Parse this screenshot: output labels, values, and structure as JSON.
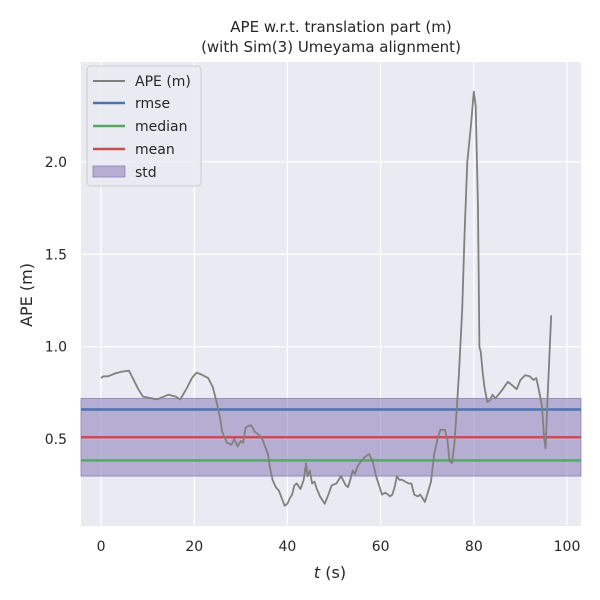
{
  "chart_data": {
    "type": "line",
    "title": "APE w.r.t. translation part (m)",
    "subtitle": "(with Sim(3) Umeyama alignment)",
    "xlabel_var": "t",
    "xlabel_unit": " (s)",
    "ylabel": "APE (m)",
    "xlim": [
      -4.3,
      103
    ],
    "ylim": [
      0.03,
      2.54
    ],
    "xticks": [
      0,
      20,
      40,
      60,
      80,
      100
    ],
    "yticks": [
      0.5,
      1.0,
      1.5,
      2.0
    ],
    "ytick_labels": [
      "0.5",
      "1.0",
      "1.5",
      "2.0"
    ],
    "grid": true,
    "legend_position": "top-left",
    "colors": {
      "background": "#eaeaf2",
      "grid": "#ffffff",
      "ape": "#808080",
      "rmse": "#4c72b0",
      "median": "#55a868",
      "mean": "#c44e52",
      "std_fill": "#8172b2"
    },
    "stats": {
      "rmse": 0.66,
      "median": 0.385,
      "mean": 0.51,
      "std_low": 0.3,
      "std_high": 0.72
    },
    "legend": [
      "APE (m)",
      "rmse",
      "median",
      "mean",
      "std"
    ],
    "series": [
      {
        "name": "APE (m)",
        "points": [
          [
            0,
            0.83
          ],
          [
            0.5,
            0.84
          ],
          [
            1.5,
            0.84
          ],
          [
            3,
            0.855
          ],
          [
            4.5,
            0.865
          ],
          [
            6,
            0.87
          ],
          [
            7,
            0.82
          ],
          [
            8,
            0.77
          ],
          [
            9,
            0.73
          ],
          [
            10,
            0.725
          ],
          [
            12,
            0.715
          ],
          [
            13.5,
            0.73
          ],
          [
            14.5,
            0.74
          ],
          [
            16,
            0.73
          ],
          [
            17,
            0.715
          ],
          [
            18.5,
            0.78
          ],
          [
            19.5,
            0.83
          ],
          [
            20.5,
            0.86
          ],
          [
            21.5,
            0.85
          ],
          [
            23,
            0.83
          ],
          [
            24,
            0.78
          ],
          [
            24.8,
            0.7
          ],
          [
            25.5,
            0.62
          ],
          [
            26,
            0.54
          ],
          [
            26.5,
            0.51
          ],
          [
            27,
            0.48
          ],
          [
            28,
            0.47
          ],
          [
            28.6,
            0.5
          ],
          [
            29.3,
            0.46
          ],
          [
            30,
            0.49
          ],
          [
            30.5,
            0.48
          ],
          [
            31,
            0.56
          ],
          [
            31.5,
            0.57
          ],
          [
            32.2,
            0.575
          ],
          [
            33,
            0.54
          ],
          [
            34,
            0.52
          ],
          [
            34.6,
            0.5
          ],
          [
            35.2,
            0.46
          ],
          [
            35.8,
            0.42
          ],
          [
            36.3,
            0.34
          ],
          [
            36.8,
            0.28
          ],
          [
            37.5,
            0.24
          ],
          [
            38.2,
            0.22
          ],
          [
            38.8,
            0.18
          ],
          [
            39.4,
            0.14
          ],
          [
            40,
            0.15
          ],
          [
            40.5,
            0.18
          ],
          [
            41,
            0.2
          ],
          [
            41.5,
            0.25
          ],
          [
            42,
            0.26
          ],
          [
            42.8,
            0.23
          ],
          [
            43.5,
            0.28
          ],
          [
            44,
            0.37
          ],
          [
            44.3,
            0.3
          ],
          [
            44.8,
            0.33
          ],
          [
            45.3,
            0.26
          ],
          [
            45.8,
            0.27
          ],
          [
            46.3,
            0.23
          ],
          [
            47,
            0.19
          ],
          [
            48,
            0.15
          ],
          [
            48.8,
            0.2
          ],
          [
            49.5,
            0.25
          ],
          [
            50.5,
            0.26
          ],
          [
            51.5,
            0.3
          ],
          [
            52.5,
            0.25
          ],
          [
            53,
            0.24
          ],
          [
            53.5,
            0.28
          ],
          [
            54,
            0.33
          ],
          [
            54.5,
            0.31
          ],
          [
            55,
            0.35
          ],
          [
            55.5,
            0.37
          ],
          [
            56.5,
            0.4
          ],
          [
            57.5,
            0.42
          ],
          [
            58.3,
            0.38
          ],
          [
            59,
            0.3
          ],
          [
            59.8,
            0.24
          ],
          [
            60.3,
            0.2
          ],
          [
            61,
            0.21
          ],
          [
            61.6,
            0.2
          ],
          [
            62,
            0.19
          ],
          [
            62.5,
            0.2
          ],
          [
            63,
            0.24
          ],
          [
            63.5,
            0.3
          ],
          [
            64,
            0.28
          ],
          [
            64.6,
            0.28
          ],
          [
            65.3,
            0.27
          ],
          [
            66,
            0.26
          ],
          [
            66.6,
            0.26
          ],
          [
            67.2,
            0.2
          ],
          [
            68,
            0.19
          ],
          [
            68.5,
            0.2
          ],
          [
            69,
            0.18
          ],
          [
            69.5,
            0.16
          ],
          [
            70,
            0.2
          ],
          [
            70.8,
            0.27
          ],
          [
            71.5,
            0.42
          ],
          [
            72.2,
            0.5
          ],
          [
            72.8,
            0.55
          ],
          [
            73.8,
            0.55
          ],
          [
            74.3,
            0.5
          ],
          [
            74.8,
            0.38
          ],
          [
            75.3,
            0.37
          ],
          [
            75.8,
            0.47
          ],
          [
            76.3,
            0.65
          ],
          [
            76.8,
            0.85
          ],
          [
            77.5,
            1.2
          ],
          [
            78,
            1.6
          ],
          [
            78.6,
            2.0
          ],
          [
            79.4,
            2.2
          ],
          [
            80,
            2.38
          ],
          [
            80.4,
            2.3
          ],
          [
            80.9,
            1.75
          ],
          [
            81.2,
            1.0
          ],
          [
            81.5,
            0.97
          ],
          [
            81.9,
            0.86
          ],
          [
            82.3,
            0.78
          ],
          [
            82.9,
            0.7
          ],
          [
            83.5,
            0.71
          ],
          [
            84,
            0.74
          ],
          [
            84.6,
            0.72
          ],
          [
            85.3,
            0.74
          ],
          [
            86.2,
            0.77
          ],
          [
            87.3,
            0.81
          ],
          [
            88.3,
            0.79
          ],
          [
            89.2,
            0.77
          ],
          [
            90,
            0.82
          ],
          [
            91,
            0.845
          ],
          [
            92,
            0.84
          ],
          [
            92.8,
            0.82
          ],
          [
            93.4,
            0.83
          ],
          [
            94,
            0.76
          ],
          [
            94.6,
            0.68
          ],
          [
            95.1,
            0.5
          ],
          [
            95.4,
            0.45
          ],
          [
            95.8,
            0.7
          ],
          [
            96.3,
            1.0
          ],
          [
            96.6,
            1.17
          ]
        ]
      }
    ]
  }
}
